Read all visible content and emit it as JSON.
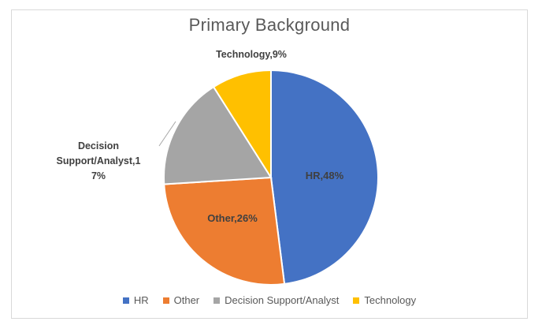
{
  "chart_data": {
    "type": "pie",
    "title": "Primary Background",
    "slices": [
      {
        "name": "HR",
        "value": 48,
        "label": "HR,48%",
        "color": "#4472C4"
      },
      {
        "name": "Other",
        "value": 26,
        "label": "Other,26%",
        "color": "#ED7D31"
      },
      {
        "name": "Decision Support/Analyst",
        "value": 17,
        "label_lines": [
          "Decision",
          "Support/Analyst,1",
          "7%"
        ],
        "color": "#A5A5A5"
      },
      {
        "name": "Technology",
        "value": 9,
        "label": "Technology,9%",
        "color": "#FFC000"
      }
    ],
    "legend_position": "bottom"
  }
}
